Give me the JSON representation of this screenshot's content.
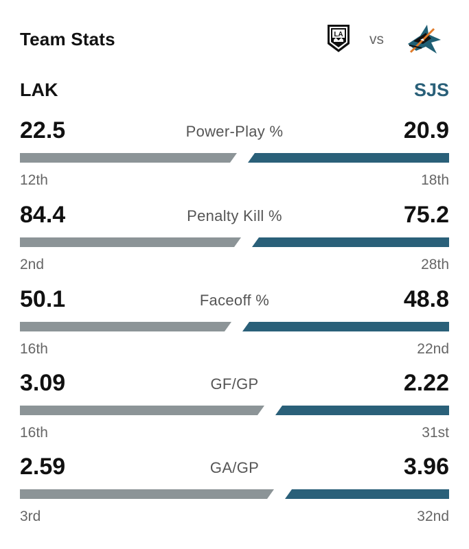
{
  "header": {
    "title": "Team Stats",
    "vs": "vs",
    "home_logo": "kings-logo-icon",
    "away_logo": "sharks-logo-icon"
  },
  "teams": {
    "left": "LAK",
    "right": "SJS",
    "left_color": "#8c9497",
    "right_color": "#2a6079"
  },
  "stats": [
    {
      "label": "Power-Play %",
      "left_value": "22.5",
      "right_value": "20.9",
      "left_rank": "12th",
      "right_rank": "18th",
      "left_share": 0.518
    },
    {
      "label": "Penalty Kill %",
      "left_value": "84.4",
      "right_value": "75.2",
      "left_rank": "2nd",
      "right_rank": "28th",
      "left_share": 0.528
    },
    {
      "label": "Faceoff %",
      "left_value": "50.1",
      "right_value": "48.8",
      "left_rank": "16th",
      "right_rank": "22nd",
      "left_share": 0.506
    },
    {
      "label": "GF/GP",
      "left_value": "3.09",
      "right_value": "2.22",
      "left_rank": "16th",
      "right_rank": "31st",
      "left_share": 0.582
    },
    {
      "label": "GA/GP",
      "left_value": "2.59",
      "right_value": "3.96",
      "left_rank": "3rd",
      "right_rank": "32nd",
      "left_share": 0.604
    }
  ]
}
